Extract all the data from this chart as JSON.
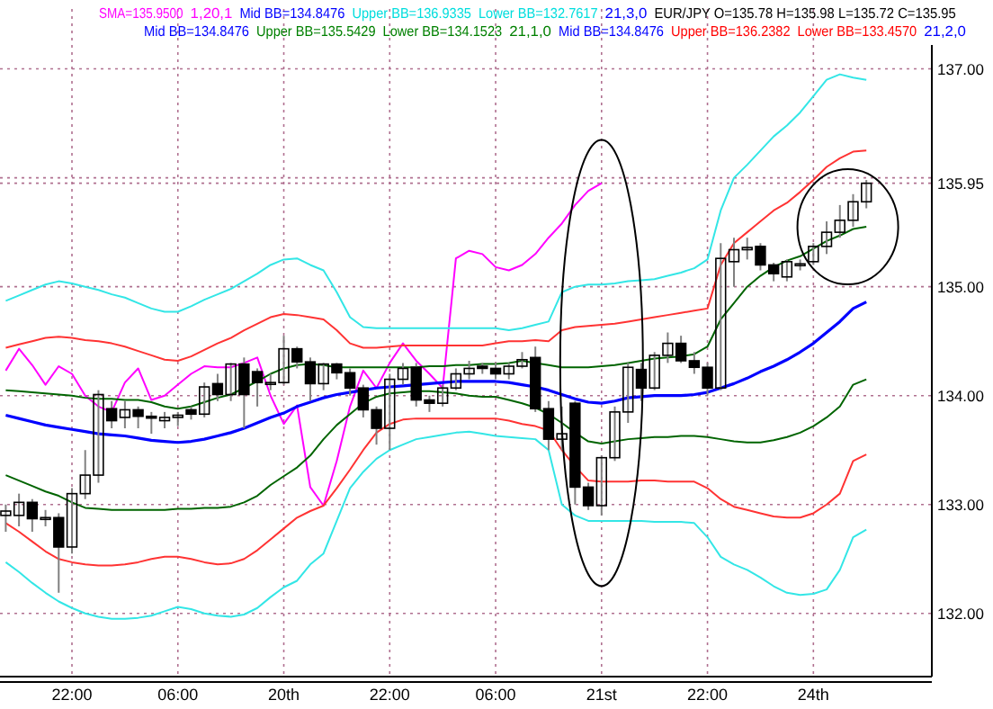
{
  "chart_data": {
    "type": "candlestick",
    "categories": [
      null,
      null,
      null,
      null,
      null,
      "22:00",
      null,
      null,
      null,
      null,
      null,
      null,
      null,
      "06:00",
      null,
      null,
      null,
      null,
      null,
      null,
      null,
      "20th",
      null,
      null,
      null,
      null,
      null,
      null,
      null,
      "22:00",
      null,
      null,
      null,
      null,
      null,
      null,
      null,
      "06:00",
      null,
      null,
      null,
      null,
      null,
      null,
      null,
      "21st",
      null,
      null,
      null,
      null,
      null,
      null,
      null,
      "22:00",
      null,
      null,
      null,
      null,
      null,
      null,
      null,
      "24th",
      null,
      null,
      null,
      null
    ],
    "ohlc": [
      [
        132.9,
        133.0,
        132.75,
        132.94
      ],
      [
        132.9,
        133.1,
        132.8,
        133.02
      ],
      [
        133.02,
        133.05,
        132.75,
        132.87
      ],
      [
        132.87,
        132.95,
        132.8,
        132.88
      ],
      [
        132.88,
        132.92,
        132.19,
        132.61
      ],
      [
        132.61,
        133.15,
        132.55,
        133.1
      ],
      [
        133.1,
        133.5,
        133.05,
        133.27
      ],
      [
        133.27,
        134.05,
        133.2,
        134.01
      ],
      [
        133.88,
        133.95,
        133.7,
        133.77
      ],
      [
        133.8,
        133.95,
        133.7,
        133.87
      ],
      [
        133.87,
        133.9,
        133.7,
        133.81
      ],
      [
        133.81,
        133.85,
        133.65,
        133.8
      ],
      [
        133.77,
        133.85,
        133.7,
        133.8
      ],
      [
        133.8,
        133.85,
        133.72,
        133.82
      ],
      [
        133.87,
        133.9,
        133.78,
        133.83
      ],
      [
        133.83,
        134.12,
        133.8,
        134.08
      ],
      [
        134.11,
        134.2,
        133.95,
        134.01
      ],
      [
        134.01,
        134.3,
        133.95,
        134.29
      ],
      [
        134.29,
        134.35,
        133.7,
        134.01
      ],
      [
        134.22,
        134.25,
        133.9,
        134.12
      ],
      [
        134.12,
        134.2,
        134.05,
        134.12
      ],
      [
        134.12,
        134.55,
        134.1,
        134.43
      ],
      [
        134.43,
        134.45,
        134.25,
        134.31
      ],
      [
        134.31,
        134.35,
        133.95,
        134.11
      ],
      [
        134.11,
        134.3,
        134.05,
        134.29
      ],
      [
        134.29,
        134.3,
        134.15,
        134.21
      ],
      [
        134.21,
        134.25,
        134.0,
        134.07
      ],
      [
        134.07,
        134.1,
        133.8,
        133.87
      ],
      [
        133.87,
        133.9,
        133.55,
        133.7
      ],
      [
        133.7,
        134.2,
        133.5,
        134.15
      ],
      [
        134.15,
        134.3,
        134.1,
        134.25
      ],
      [
        134.26,
        134.3,
        133.9,
        133.96
      ],
      [
        133.96,
        134.0,
        133.85,
        133.93
      ],
      [
        133.93,
        134.1,
        133.9,
        134.07
      ],
      [
        134.07,
        134.25,
        134.05,
        134.2
      ],
      [
        134.2,
        134.32,
        134.15,
        134.25
      ],
      [
        134.27,
        134.3,
        134.2,
        134.25
      ],
      [
        134.25,
        134.3,
        134.15,
        134.2
      ],
      [
        134.2,
        134.3,
        134.15,
        134.27
      ],
      [
        134.27,
        134.4,
        134.25,
        134.33
      ],
      [
        134.35,
        134.45,
        133.85,
        133.88
      ],
      [
        133.88,
        133.95,
        133.5,
        133.6
      ],
      [
        133.6,
        133.9,
        133.5,
        133.65
      ],
      [
        133.93,
        133.95,
        133.0,
        133.16
      ],
      [
        133.16,
        133.2,
        132.95,
        132.99
      ],
      [
        132.99,
        133.45,
        132.9,
        133.43
      ],
      [
        133.43,
        133.9,
        133.4,
        133.85
      ],
      [
        133.85,
        134.3,
        133.75,
        134.26
      ],
      [
        134.24,
        134.3,
        133.95,
        134.07
      ],
      [
        134.07,
        134.4,
        134.05,
        134.37
      ],
      [
        134.37,
        134.58,
        134.3,
        134.48
      ],
      [
        134.48,
        134.55,
        134.3,
        134.32
      ],
      [
        134.32,
        134.4,
        134.2,
        134.26
      ],
      [
        134.26,
        134.3,
        134.0,
        134.07
      ],
      [
        134.07,
        135.4,
        134.05,
        135.26
      ],
      [
        135.23,
        135.45,
        135.0,
        135.34
      ],
      [
        135.34,
        135.45,
        135.25,
        135.36
      ],
      [
        135.37,
        135.4,
        135.15,
        135.2
      ],
      [
        135.2,
        135.22,
        135.05,
        135.12
      ],
      [
        135.09,
        135.25,
        135.05,
        135.23
      ],
      [
        135.2,
        135.25,
        135.15,
        135.21
      ],
      [
        135.23,
        135.4,
        135.2,
        135.37
      ],
      [
        135.37,
        135.6,
        135.3,
        135.5
      ],
      [
        135.5,
        135.75,
        135.45,
        135.61
      ],
      [
        135.61,
        135.85,
        135.55,
        135.78
      ],
      [
        135.78,
        135.98,
        135.72,
        135.95
      ]
    ],
    "series": [
      {
        "type": "line",
        "color": "#ff00ff",
        "values": [
          134.23,
          134.43,
          134.28,
          134.1,
          134.27,
          134.2,
          134.0,
          133.9,
          133.85,
          134.12,
          134.25,
          133.96,
          134.0,
          134.1,
          134.2,
          134.27,
          134.26,
          134.26,
          134.3,
          134.35,
          134.0,
          133.74,
          133.91,
          133.16,
          132.99,
          133.4,
          133.9,
          134.23,
          134.07,
          134.3,
          134.48,
          134.32,
          134.2,
          134.07,
          135.26,
          135.33,
          135.3,
          135.18,
          135.15,
          135.2,
          135.3,
          135.45,
          135.58,
          135.75,
          135.88,
          135.95,
          null,
          null,
          null,
          null,
          null,
          null,
          null,
          null,
          null,
          null,
          null,
          null,
          null,
          null,
          null,
          null,
          null,
          null,
          null,
          null
        ]
      },
      {
        "type": "line",
        "color": "#33e6e6",
        "values": [
          134.87,
          134.92,
          134.97,
          135.02,
          135.05,
          135.03,
          135.0,
          134.97,
          134.93,
          134.9,
          134.85,
          134.8,
          134.77,
          134.77,
          134.82,
          134.88,
          134.93,
          134.98,
          135.05,
          135.12,
          135.2,
          135.25,
          135.26,
          135.2,
          135.15,
          134.95,
          134.72,
          134.63,
          134.62,
          134.62,
          134.62,
          134.62,
          134.62,
          134.62,
          134.62,
          134.62,
          134.62,
          134.62,
          134.6,
          134.62,
          134.65,
          134.68,
          134.95,
          135.0,
          135.02,
          135.02,
          135.03,
          135.05,
          135.06,
          135.07,
          135.1,
          135.13,
          135.17,
          135.25,
          135.7,
          136.0,
          136.12,
          136.25,
          136.38,
          136.48,
          136.6,
          136.75,
          136.9,
          136.95,
          136.92,
          136.9
        ]
      },
      {
        "type": "line",
        "color": "#ff3333",
        "values": [
          134.44,
          134.47,
          134.5,
          134.53,
          134.54,
          134.53,
          134.51,
          134.5,
          134.48,
          134.45,
          134.41,
          134.37,
          134.33,
          134.32,
          134.36,
          134.42,
          134.48,
          134.53,
          134.6,
          134.66,
          134.72,
          134.75,
          134.74,
          134.72,
          134.7,
          134.6,
          134.48,
          134.44,
          134.44,
          134.45,
          134.46,
          134.46,
          134.46,
          134.46,
          134.46,
          134.46,
          134.46,
          134.48,
          134.5,
          134.5,
          134.51,
          134.5,
          134.6,
          134.63,
          134.64,
          134.65,
          134.66,
          134.68,
          134.7,
          134.72,
          134.74,
          134.76,
          134.78,
          134.8,
          135.2,
          135.4,
          135.5,
          135.6,
          135.7,
          135.77,
          135.87,
          135.98,
          136.1,
          136.18,
          136.24,
          136.25
        ]
      },
      {
        "type": "line",
        "color": "#006400",
        "values": [
          134.05,
          134.04,
          134.03,
          134.02,
          134.01,
          134.0,
          133.98,
          133.97,
          133.97,
          133.96,
          133.96,
          133.94,
          133.9,
          133.88,
          133.9,
          133.94,
          133.98,
          134.01,
          134.07,
          134.13,
          134.2,
          134.25,
          134.28,
          134.29,
          134.28,
          134.26,
          134.26,
          134.26,
          134.26,
          134.26,
          134.26,
          134.26,
          134.27,
          134.27,
          134.28,
          134.28,
          134.29,
          134.29,
          134.3,
          134.32,
          134.3,
          134.28,
          134.26,
          134.26,
          134.26,
          134.27,
          134.28,
          134.3,
          134.32,
          134.34,
          134.35,
          134.36,
          134.38,
          134.45,
          134.7,
          134.85,
          135.0,
          135.1,
          135.18,
          135.24,
          135.28,
          135.35,
          135.42,
          135.47,
          135.53,
          135.55
        ]
      },
      {
        "type": "line",
        "color": "#0000ff",
        "values": [
          133.82,
          133.79,
          133.76,
          133.73,
          133.71,
          133.69,
          133.67,
          133.65,
          133.64,
          133.63,
          133.61,
          133.59,
          133.58,
          133.57,
          133.58,
          133.6,
          133.63,
          133.66,
          133.7,
          133.75,
          133.8,
          133.84,
          133.9,
          133.94,
          133.98,
          134.01,
          134.03,
          134.05,
          134.07,
          134.08,
          134.09,
          134.1,
          134.11,
          134.12,
          134.13,
          134.13,
          134.13,
          134.13,
          134.12,
          134.1,
          134.08,
          134.05,
          134.01,
          133.97,
          133.94,
          133.93,
          133.95,
          133.98,
          133.99,
          134.0,
          134.0,
          134.0,
          134.01,
          134.03,
          134.07,
          134.11,
          134.16,
          134.22,
          134.27,
          134.33,
          134.4,
          134.48,
          134.58,
          134.68,
          134.8,
          134.86
        ]
      },
      {
        "type": "line",
        "color": "#006400",
        "values": [
          133.27,
          133.22,
          133.17,
          133.12,
          133.08,
          133.02,
          132.97,
          132.96,
          132.95,
          132.95,
          132.95,
          132.95,
          132.95,
          132.96,
          132.96,
          132.97,
          132.97,
          132.98,
          133.02,
          133.08,
          133.18,
          133.26,
          133.34,
          133.45,
          133.6,
          133.73,
          133.83,
          133.93,
          133.99,
          134.02,
          134.03,
          134.04,
          134.04,
          134.03,
          134.02,
          134.0,
          133.99,
          133.99,
          133.96,
          133.93,
          133.89,
          133.83,
          133.75,
          133.66,
          133.58,
          133.56,
          133.58,
          133.6,
          133.61,
          133.62,
          133.62,
          133.63,
          133.63,
          133.62,
          133.6,
          133.58,
          133.57,
          133.57,
          133.59,
          133.62,
          133.66,
          133.72,
          133.8,
          133.9,
          134.1,
          134.15
        ]
      },
      {
        "type": "line",
        "color": "#ff3333",
        "values": [
          132.83,
          132.75,
          132.66,
          132.57,
          132.5,
          132.47,
          132.45,
          132.44,
          132.44,
          132.45,
          132.47,
          132.5,
          132.52,
          132.52,
          132.5,
          132.47,
          132.45,
          132.46,
          132.5,
          132.58,
          132.68,
          132.78,
          132.88,
          132.94,
          132.99,
          133.15,
          133.32,
          133.5,
          133.66,
          133.74,
          133.78,
          133.79,
          133.79,
          133.79,
          133.79,
          133.79,
          133.79,
          133.79,
          133.77,
          133.74,
          133.72,
          133.68,
          133.5,
          133.35,
          133.22,
          133.21,
          133.21,
          133.21,
          133.22,
          133.22,
          133.21,
          133.21,
          133.21,
          133.15,
          133.05,
          132.98,
          132.95,
          132.92,
          132.89,
          132.88,
          132.88,
          132.92,
          133.0,
          133.1,
          133.4,
          133.46
        ]
      },
      {
        "type": "line",
        "color": "#33e6e6",
        "values": [
          132.47,
          132.38,
          132.28,
          132.19,
          132.11,
          132.05,
          132.0,
          131.97,
          131.95,
          131.95,
          131.96,
          131.98,
          132.02,
          132.06,
          132.04,
          132.0,
          131.98,
          131.97,
          131.99,
          132.05,
          132.15,
          132.24,
          132.3,
          132.45,
          132.55,
          132.85,
          133.15,
          133.3,
          133.42,
          133.5,
          133.55,
          133.6,
          133.62,
          133.64,
          133.66,
          133.67,
          133.65,
          133.63,
          133.62,
          133.61,
          133.6,
          133.5,
          133.0,
          132.9,
          132.85,
          132.85,
          132.85,
          132.85,
          132.85,
          132.84,
          132.84,
          132.84,
          132.83,
          132.7,
          132.52,
          132.45,
          132.4,
          132.33,
          132.25,
          132.19,
          132.17,
          132.18,
          132.22,
          132.4,
          132.7,
          132.77
        ]
      }
    ],
    "ylim": [
      131.42,
      137.55
    ],
    "yticks": [
      {
        "value": 132,
        "label": "132.00"
      },
      {
        "value": 133,
        "label": "133.00"
      },
      {
        "value": 134,
        "label": "134.00"
      },
      {
        "value": 135,
        "label": "135.00"
      },
      {
        "value": 135.95,
        "label": "135.95"
      },
      {
        "value": 136,
        "label": null
      },
      {
        "value": 137,
        "label": "137.00"
      }
    ],
    "grid": true,
    "annotations": [
      "SMA=135.9500",
      "1,20,1",
      "Mid BB=134.8476",
      "Upper BB=136.9335",
      "Lower BB=132.7617",
      "21,3,0",
      "EUR/JPY O=135.78 H=135.98 L=135.72 C=135.95",
      "Mid BB=134.8476",
      "Upper BB=135.5429",
      "Lower BB=134.1523",
      "21,1,0",
      "Mid BB=134.8476",
      "Upper BB=136.2382",
      "Lower BB=133.4570",
      "21,2,0"
    ]
  }
}
